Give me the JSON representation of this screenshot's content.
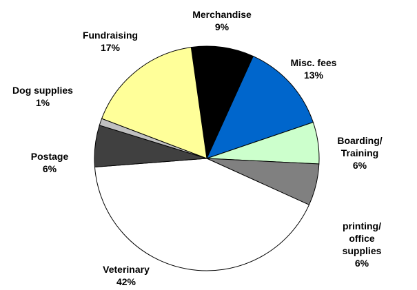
{
  "chart_data": {
    "type": "pie",
    "categories": [
      "Merchandise",
      "Misc. fees",
      "Boarding/\nTraining",
      "printing/\noffice supplies",
      "Veterinary",
      "Postage",
      "Dog supplies",
      "Fundraising"
    ],
    "values": [
      9,
      13,
      6,
      6,
      42,
      6,
      1,
      17
    ],
    "value_labels": [
      "9%",
      "13%",
      "6%",
      "6%",
      "42%",
      "6%",
      "1%",
      "17%"
    ],
    "colors": [
      "#000000",
      "#0066cc",
      "#ccffcc",
      "#808080",
      "#ffffff",
      "#404040",
      "#c0c0c0",
      "#ffff99"
    ]
  }
}
